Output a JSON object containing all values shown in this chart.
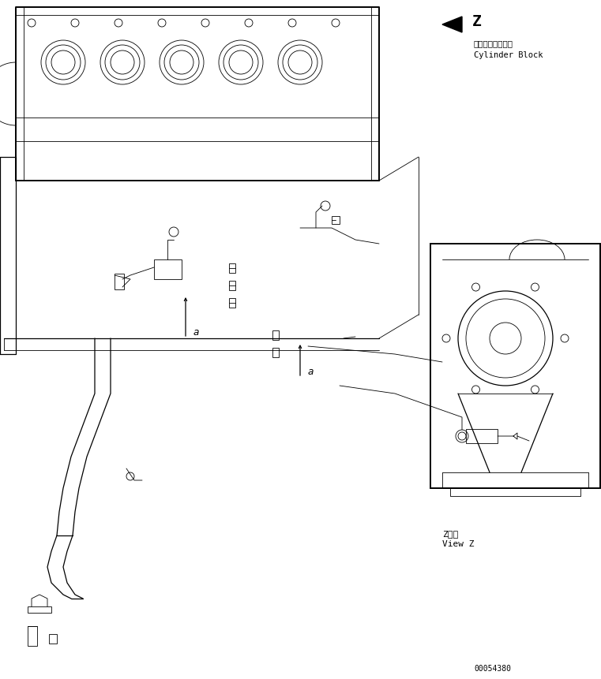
{
  "background_color": "#ffffff",
  "line_color": "#000000",
  "text_color": "#000000",
  "title_z_label": "Z",
  "label_japanese": "シリンダブロック",
  "label_english": "Cylinder Block",
  "view_z_japanese": "Z　視",
  "view_z_english": "View Z",
  "part_number": "00054380",
  "label_a1": "a",
  "label_a2": "a",
  "fig_width": 7.61,
  "fig_height": 8.62,
  "dpi": 100
}
